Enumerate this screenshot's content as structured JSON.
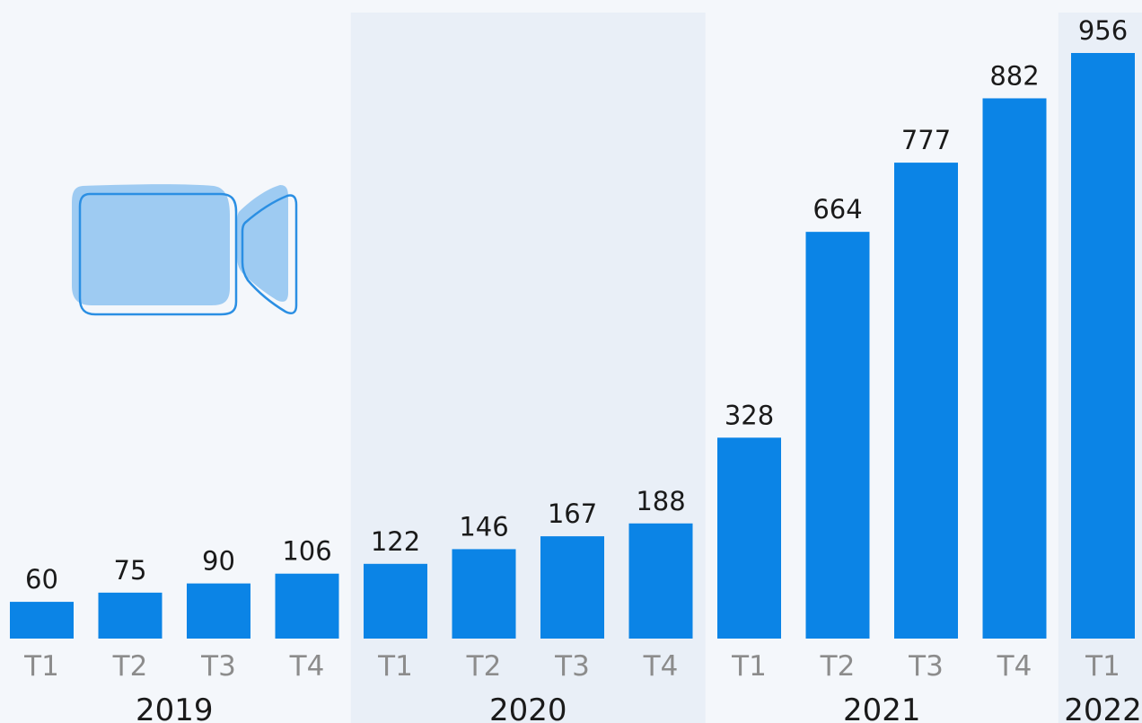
{
  "chart_data": {
    "type": "bar",
    "categories": [
      "T1",
      "T2",
      "T3",
      "T4",
      "T1",
      "T2",
      "T3",
      "T4",
      "T1",
      "T2",
      "T3",
      "T4",
      "T1"
    ],
    "groups": [
      {
        "label": "2019",
        "quarters": [
          "T1",
          "T2",
          "T3",
          "T4"
        ]
      },
      {
        "label": "2020",
        "quarters": [
          "T1",
          "T2",
          "T3",
          "T4"
        ]
      },
      {
        "label": "2021",
        "quarters": [
          "T1",
          "T2",
          "T3",
          "T4"
        ]
      },
      {
        "label": "2022",
        "quarters": [
          "T1"
        ]
      }
    ],
    "values": [
      60,
      75,
      90,
      106,
      122,
      146,
      167,
      188,
      328,
      664,
      777,
      882,
      956
    ],
    "title": "",
    "xlabel": "",
    "ylabel": "",
    "ylim": [
      0,
      1000
    ],
    "grid": false,
    "legend": "none",
    "colors": {
      "bar": "#0b84e6",
      "band": "#e9eff7",
      "icon_fill": "#9ecbf2",
      "icon_stroke": "#2b8fe3"
    },
    "icon": "video-camera-icon"
  }
}
